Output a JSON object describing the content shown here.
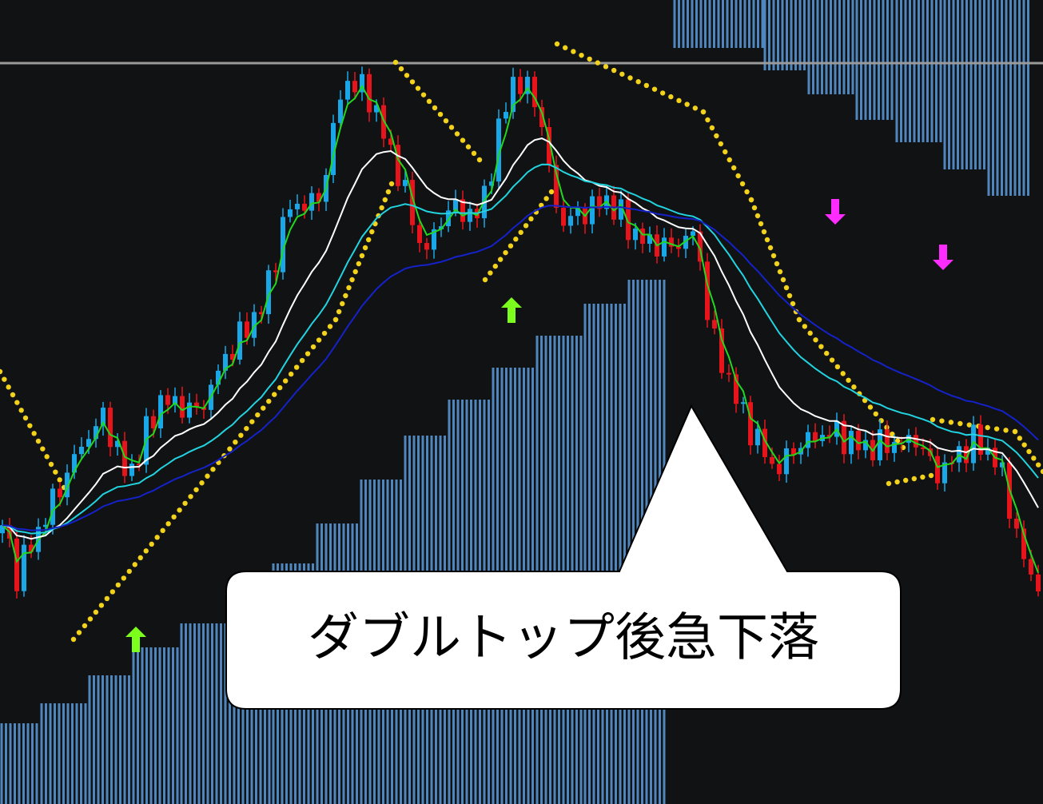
{
  "annotation": {
    "text": "ダブルトップ後急下落"
  }
}
